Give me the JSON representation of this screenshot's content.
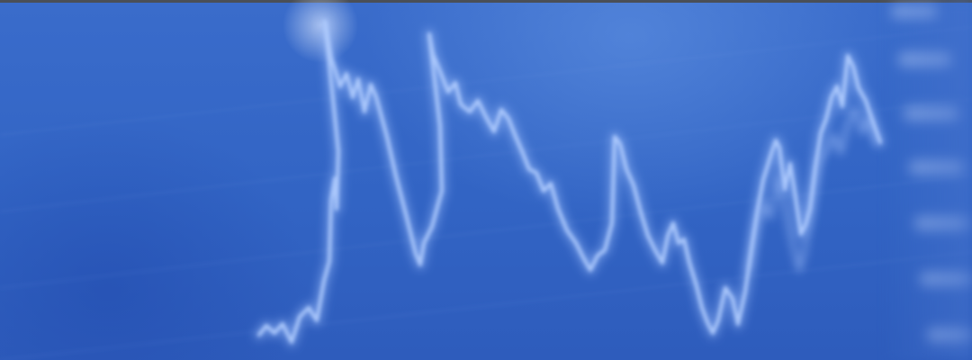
{
  "photo": {
    "subject": "blurred-stock-chart-line",
    "colors": {
      "background": "#3264c4",
      "line": "#a9c8ff",
      "glow": "#cfe0ff",
      "top_edge": "#4a4f57"
    }
  }
}
